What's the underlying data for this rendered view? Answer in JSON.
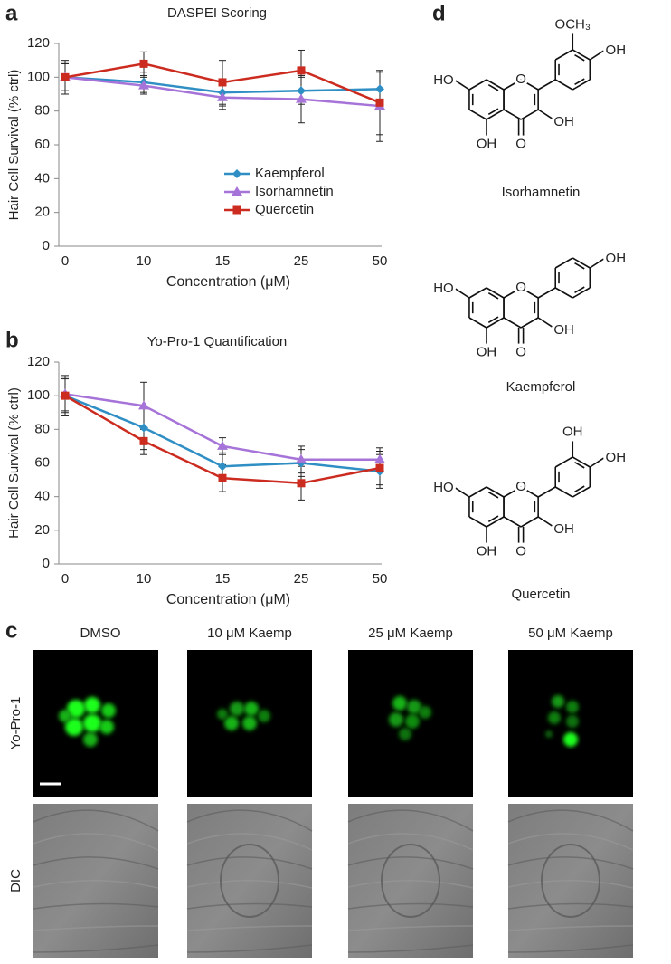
{
  "panel_labels": [
    "a",
    "b",
    "c",
    "d"
  ],
  "chart_data": [
    {
      "type": "line",
      "title": "DASPEI Scoring",
      "x_label": "Concentration (μM)",
      "y_label": "Hair Cell Survival (% ctrl)",
      "categories": [
        "0",
        "10",
        "15",
        "25",
        "50"
      ],
      "ylim": [
        0,
        120
      ],
      "yticks": [
        0,
        20,
        40,
        60,
        80,
        100,
        120
      ],
      "legend": true,
      "series": [
        {
          "name": "Kaempferol",
          "color": "#2f8fc4",
          "marker": "diamond",
          "values": [
            100,
            97,
            91,
            92,
            93
          ],
          "errors": [
            10,
            6,
            8,
            8,
            10
          ]
        },
        {
          "name": "Isorhamnetin",
          "color": "#a673d8",
          "marker": "triangle",
          "values": [
            100,
            95,
            88,
            87,
            83
          ],
          "errors": [
            8,
            5,
            7,
            14,
            21
          ]
        },
        {
          "name": "Quercetin",
          "color": "#cc2b1f",
          "marker": "square",
          "values": [
            100,
            108,
            97,
            104,
            85
          ],
          "errors": [
            8,
            7,
            13,
            12,
            19
          ]
        }
      ]
    },
    {
      "type": "line",
      "title": "Yo-Pro-1 Quantification",
      "x_label": "Concentration (μM)",
      "y_label": "Hair Cell Survival (% ctrl)",
      "categories": [
        "0",
        "10",
        "15",
        "25",
        "50"
      ],
      "ylim": [
        0,
        120
      ],
      "yticks": [
        0,
        20,
        40,
        60,
        80,
        100,
        120
      ],
      "legend": false,
      "series": [
        {
          "name": "Kaempferol",
          "color": "#2f8fc4",
          "marker": "diamond",
          "values": [
            100,
            81,
            58,
            60,
            55
          ],
          "errors": [
            12,
            13,
            8,
            8,
            10
          ]
        },
        {
          "name": "Isorhamnetin",
          "color": "#a673d8",
          "marker": "triangle",
          "values": [
            101,
            94,
            70,
            62,
            62
          ],
          "errors": [
            10,
            14,
            5,
            8,
            7
          ]
        },
        {
          "name": "Quercetin",
          "color": "#cc2b1f",
          "marker": "square",
          "values": [
            100,
            73,
            51,
            48,
            57
          ],
          "errors": [
            10,
            8,
            8,
            10,
            10
          ]
        }
      ]
    }
  ],
  "images": {
    "columns": [
      "DMSO",
      "10 μM Kaemp",
      "25 μM Kaemp",
      "50 μM Kaemp"
    ],
    "rows": [
      "Yo-Pro-1",
      "DIC"
    ]
  },
  "structures": [
    {
      "name": "Isorhamnetin",
      "ho7": "HO",
      "oh5": "OH",
      "oh3": "OH",
      "o1": "O",
      "o4": "O",
      "oh4p": "OH",
      "r3p": "OCH₃"
    },
    {
      "name": "Kaempferol",
      "ho7": "HO",
      "oh5": "OH",
      "oh3": "OH",
      "o1": "O",
      "o4": "O",
      "oh4p": "OH"
    },
    {
      "name": "Quercetin",
      "ho7": "HO",
      "oh5": "OH",
      "oh3": "OH",
      "o1": "O",
      "o4": "O",
      "oh4p": "OH",
      "r3p": "OH"
    }
  ]
}
